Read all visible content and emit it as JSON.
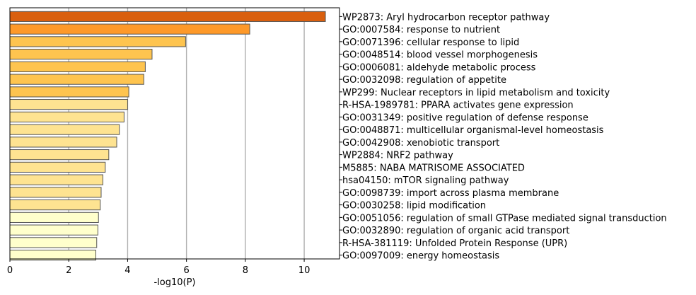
{
  "chart_data": {
    "type": "bar",
    "orientation": "horizontal",
    "xlabel": "-log10(P)",
    "ylabel": "",
    "xlim": [
      0,
      11.2
    ],
    "xticks": [
      0,
      2,
      4,
      6,
      8,
      10
    ],
    "grid": "vertical gridlines at x ticks",
    "categories": [
      "WP2873: Aryl hydrocarbon receptor pathway",
      "GO:0007584: response to nutrient",
      "GO:0071396: cellular response to lipid",
      "GO:0048514: blood vessel morphogenesis",
      "GO:0006081: aldehyde metabolic process",
      "GO:0032098: regulation of appetite",
      "WP299: Nuclear receptors in lipid metabolism and toxicity",
      "R-HSA-1989781: PPARA activates gene expression",
      "GO:0031349: positive regulation of defense response",
      "GO:0048871: multicellular organismal-level homeostasis",
      "GO:0042908: xenobiotic transport",
      "WP2884: NRF2 pathway",
      "M5885: NABA MATRISOME ASSOCIATED",
      "hsa04150: mTOR signaling pathway",
      "GO:0098739: import across plasma membrane",
      "GO:0030258: lipid modification",
      "GO:0051056: regulation of small GTPase mediated signal transduction",
      "GO:0032890: regulation of organic acid transport",
      "R-HSA-381119: Unfolded Protein Response (UPR)",
      "GO:0097009: energy homeostasis"
    ],
    "values": [
      10.72,
      8.15,
      5.97,
      4.83,
      4.6,
      4.55,
      4.04,
      4.0,
      3.88,
      3.72,
      3.63,
      3.36,
      3.24,
      3.16,
      3.1,
      3.07,
      3.01,
      2.99,
      2.95,
      2.92
    ],
    "bar_colors": [
      "#d95f0e",
      "#fe9929",
      "#fec44f",
      "#fec44f",
      "#fec44f",
      "#fec44f",
      "#fec44f",
      "#fee391",
      "#fee391",
      "#fee391",
      "#fee391",
      "#fee391",
      "#fee391",
      "#fee391",
      "#fee391",
      "#fee391",
      "#ffffcc",
      "#ffffcc",
      "#ffffcc",
      "#ffffcc"
    ],
    "bar_edge_color": "#555555",
    "grid_color": "#b0b0b0"
  }
}
